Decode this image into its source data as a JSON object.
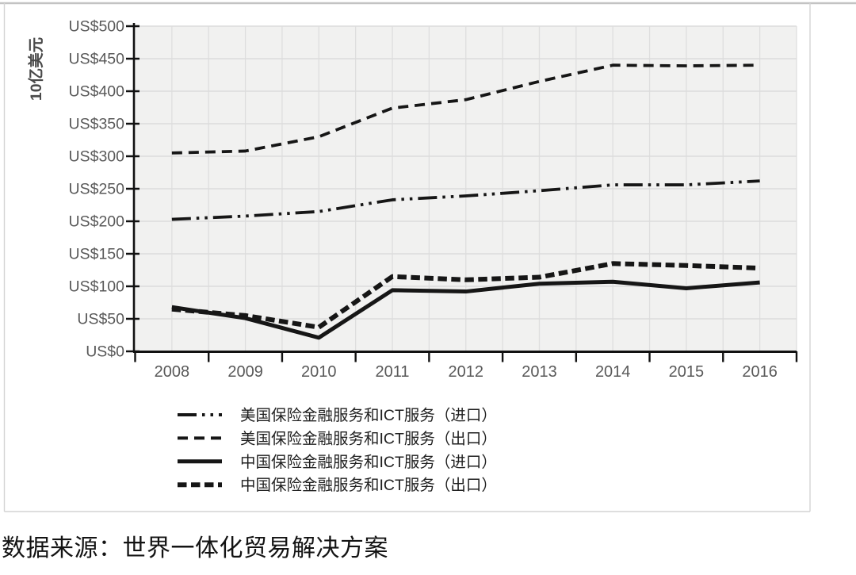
{
  "caption": "数据来源：世界一体化贸易解决方案",
  "chart_data": {
    "type": "line",
    "title": "",
    "y_axis_title": "10亿美元",
    "xlabel": "",
    "ylabel": "10亿美元",
    "ylim": [
      0,
      500
    ],
    "y_step": 50,
    "y_tick_labels": [
      "US$0",
      "US$50",
      "US$100",
      "US$150",
      "US$200",
      "US$250",
      "US$300",
      "US$350",
      "US$400",
      "US$450",
      "US$500"
    ],
    "categories": [
      "2008",
      "2009",
      "2010",
      "2011",
      "2012",
      "2013",
      "2014",
      "2015",
      "2016"
    ],
    "grid": {
      "horizontal": true,
      "vertical": true
    },
    "legend_position": "bottom-left",
    "line_color": "#161616",
    "axis_label_color": "#595959",
    "series": [
      {
        "key": "us-imports",
        "name": "美国保险金融服务和ICT服务（进口）",
        "style": "dash-dot-dot",
        "values": [
          203,
          208,
          215,
          233,
          239,
          247,
          256,
          256,
          262
        ]
      },
      {
        "key": "us-exports",
        "name": "美国保险金融服务和ICT服务（出口）",
        "style": "dashed",
        "values": [
          305,
          308,
          330,
          374,
          387,
          415,
          440,
          439,
          440
        ]
      },
      {
        "key": "cn-imports",
        "name": "中国保险金融服务和ICT服务（进口）",
        "style": "solid",
        "values": [
          68,
          51,
          21,
          94,
          92,
          104,
          107,
          97,
          106
        ]
      },
      {
        "key": "cn-exports",
        "name": "中国保险金融服务和ICT服务（出口）",
        "style": "bold-dashed",
        "values": [
          65,
          55,
          37,
          115,
          110,
          114,
          135,
          132,
          128
        ]
      }
    ]
  }
}
